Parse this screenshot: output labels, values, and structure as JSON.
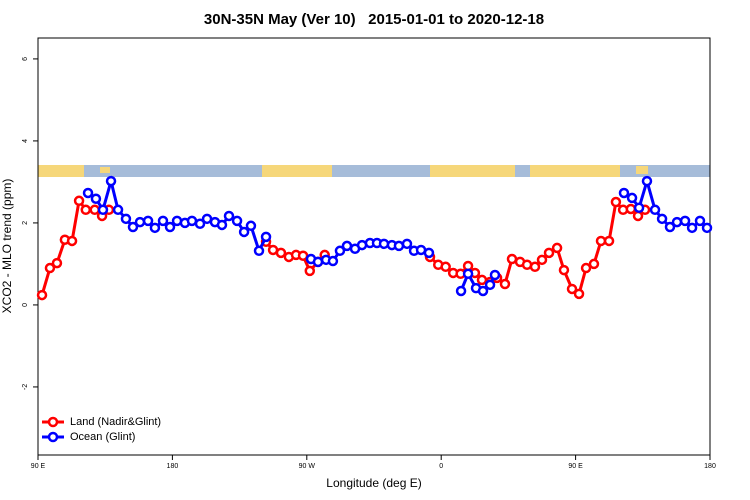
{
  "chart_data": {
    "type": "line",
    "title": "30N-35N May (Ver 10)   2015-01-01 to 2020-12-18",
    "x_label": "Longitude (deg E)",
    "y_label": "XCO2 - MLO trend (ppm)",
    "xlim": [
      90,
      540
    ],
    "ylim": [
      -3.66,
      6.51
    ],
    "xticks": [
      {
        "value": 90,
        "label": "90 E"
      },
      180,
      {
        "value": 270,
        "label": "90 W"
      },
      {
        "value": 360,
        "label": "0"
      },
      {
        "value": 450,
        "label": "90 E"
      },
      {
        "value": 540,
        "label": "180"
      }
    ],
    "yticks": [
      -2,
      0,
      2,
      4,
      6
    ],
    "legend": "bottom-left",
    "series": [
      {
        "name": "Land (Nadir&Glint)",
        "color": "#ff0000",
        "x": [
          92.7,
          98,
          102.7,
          108,
          112.8,
          117.5,
          122,
          128,
          132.9,
          137.5,
          null,
          242.7,
          247.4,
          252.7,
          258,
          262.8,
          267.5,
          272,
          277.5,
          282,
          null,
          352.5,
          358,
          363,
          368,
          373,
          378,
          382.6,
          387.3,
          392.7,
          397.4,
          402.7,
          407.4,
          412.8,
          417.5,
          422.8,
          427.5,
          432.2,
          437.6,
          442.2,
          447.6,
          452.3,
          457,
          462.3,
          467,
          472.4,
          477,
          481.8,
          487,
          491.8,
          496.5
        ],
        "values": [
          0.24,
          0.9,
          1.02,
          1.59,
          1.56,
          2.54,
          2.32,
          2.32,
          2.17,
          2.32,
          null,
          1.54,
          1.34,
          1.27,
          1.17,
          1.22,
          1.2,
          0.83,
          1.05,
          1.22,
          null,
          1.17,
          0.98,
          0.93,
          0.78,
          0.76,
          0.95,
          0.78,
          0.61,
          0.56,
          0.66,
          0.51,
          1.12,
          1.05,
          0.98,
          0.93,
          1.1,
          1.27,
          1.39,
          0.85,
          0.39,
          0.27,
          0.9,
          1.0,
          1.56,
          1.56,
          2.51,
          2.32,
          2.34,
          2.17,
          2.32
        ]
      },
      {
        "name": "Ocean (Glint)",
        "color": "#0000ff",
        "x": [
          123.5,
          128.8,
          133.5,
          138.9,
          143.6,
          148.9,
          153.6,
          158.3,
          163.7,
          168.3,
          173.7,
          178.4,
          183.1,
          188.4,
          193.1,
          198.5,
          203.2,
          208.5,
          213.2,
          217.9,
          223.3,
          228,
          232.6,
          238,
          242.7,
          null,
          272.8,
          277.5,
          282.9,
          287.5,
          292.2,
          296.9,
          302.3,
          307,
          312.3,
          317,
          321.7,
          327,
          331.7,
          337.1,
          341.8,
          346.5,
          351.8,
          null,
          373.3,
          378,
          383.3,
          388,
          392.7,
          396,
          null,
          482.4,
          487.8,
          492.5,
          497.8,
          503.2,
          507.9,
          513.2,
          517.9,
          523.3,
          528,
          533.3,
          538
        ],
        "values": [
          2.73,
          2.59,
          2.32,
          3.02,
          2.32,
          2.1,
          1.9,
          2.02,
          2.05,
          1.88,
          2.05,
          1.9,
          2.05,
          2.0,
          2.05,
          1.98,
          2.1,
          2.02,
          1.95,
          2.17,
          2.05,
          1.78,
          1.93,
          1.32,
          1.66,
          null,
          1.12,
          1.05,
          1.1,
          1.07,
          1.32,
          1.44,
          1.37,
          1.46,
          1.51,
          1.51,
          1.49,
          1.46,
          1.44,
          1.49,
          1.32,
          1.34,
          1.27,
          null,
          0.34,
          0.76,
          0.41,
          0.34,
          0.49,
          0.73,
          null,
          2.73,
          2.61,
          2.37,
          3.02,
          2.32,
          2.1,
          1.9,
          2.02,
          2.05,
          1.88,
          2.05,
          1.88
        ]
      }
    ]
  }
}
